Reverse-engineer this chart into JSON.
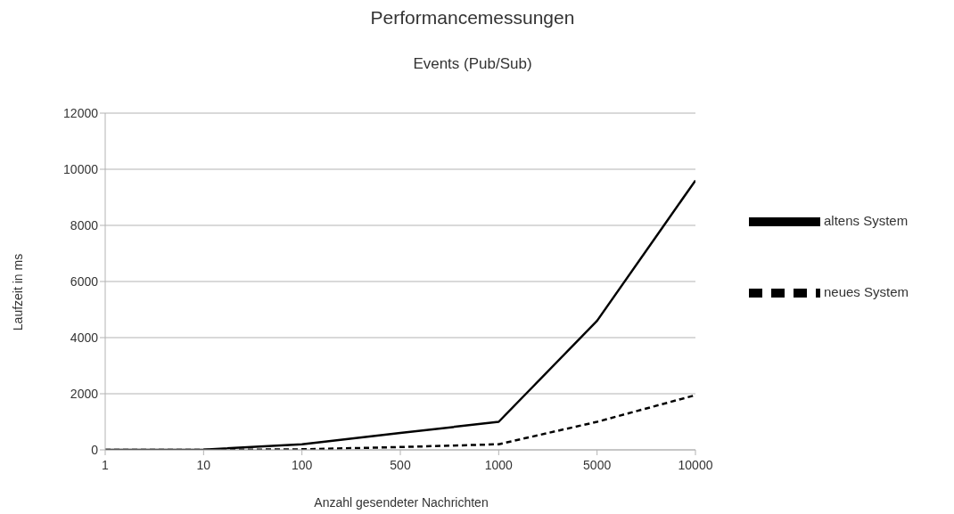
{
  "chart_data": {
    "type": "line",
    "title": "Performancemessungen",
    "subtitle": "Events (Pub/Sub)",
    "xlabel": "Anzahl gesendeter Nachrichten",
    "ylabel": "Laufzeit in ms",
    "categories": [
      "1",
      "10",
      "100",
      "500",
      "1000",
      "5000",
      "10000"
    ],
    "series": [
      {
        "name": "altens System",
        "color": "#000000",
        "line_style": "solid",
        "values": [
          0,
          10,
          200,
          600,
          1000,
          4600,
          9600
        ]
      },
      {
        "name": "neues System",
        "color": "#000000",
        "line_style": "dashed",
        "values": [
          0,
          0,
          20,
          100,
          200,
          1000,
          1950
        ]
      }
    ],
    "ylim": [
      0,
      12000
    ],
    "yticks": [
      0,
      2000,
      4000,
      6000,
      8000,
      10000,
      12000
    ],
    "grid": "y",
    "legend": "right",
    "marker": "none"
  }
}
